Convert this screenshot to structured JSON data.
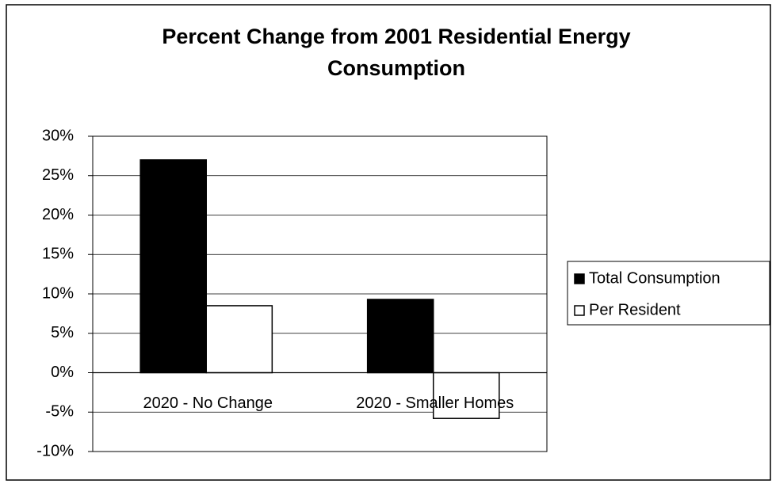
{
  "chart_data": {
    "type": "bar",
    "title": "Percent Change from 2001 Residential Energy Consumption",
    "categories": [
      "2020 - No Change",
      "2020 - Smaller Homes"
    ],
    "series": [
      {
        "name": "Total Consumption",
        "color": "#000000",
        "values": [
          27,
          9.3
        ]
      },
      {
        "name": "Per Resident",
        "color": "#ffffff",
        "values": [
          8.5,
          -5.8
        ]
      }
    ],
    "ylim": [
      -10,
      30
    ],
    "yticks": [
      {
        "value": -10,
        "label": "-10%"
      },
      {
        "value": -5,
        "label": "-5%"
      },
      {
        "value": 0,
        "label": "0%"
      },
      {
        "value": 5,
        "label": "5%"
      },
      {
        "value": 10,
        "label": "10%"
      },
      {
        "value": 15,
        "label": "15%"
      },
      {
        "value": 20,
        "label": "20%"
      },
      {
        "value": 25,
        "label": "25%"
      },
      {
        "value": 30,
        "label": "30%"
      }
    ],
    "grid": true,
    "legend": "right"
  }
}
